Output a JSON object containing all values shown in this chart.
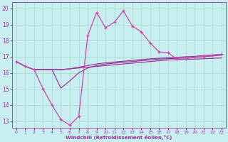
{
  "xlabel": "Windchill (Refroidissement éolien,°C)",
  "background_color": "#c8eef0",
  "grid_color": "#a0d8c8",
  "line_color1": "#cc44aa",
  "line_color2": "#993399",
  "x_ticks": [
    0,
    1,
    2,
    3,
    4,
    5,
    6,
    7,
    8,
    9,
    10,
    11,
    12,
    13,
    14,
    15,
    16,
    17,
    18,
    19,
    20,
    21,
    22,
    23
  ],
  "y_ticks": [
    13,
    14,
    15,
    16,
    17,
    18,
    19,
    20
  ],
  "ylim": [
    12.6,
    20.4
  ],
  "xlim": [
    -0.5,
    23.5
  ],
  "line_zigzag_x": [
    0,
    1,
    2,
    3,
    4,
    5,
    6,
    7,
    8,
    9,
    10,
    11,
    12,
    13,
    14,
    15,
    16,
    17,
    18,
    19,
    20,
    21,
    22,
    23
  ],
  "line_zigzag_y": [
    16.7,
    16.4,
    16.2,
    15.0,
    14.0,
    13.1,
    12.75,
    13.3,
    18.3,
    19.75,
    18.8,
    19.15,
    19.85,
    18.9,
    18.55,
    17.85,
    17.3,
    17.25,
    16.85,
    16.85,
    17.0,
    17.0,
    17.1,
    17.15
  ],
  "line_flat1_x": [
    0,
    1,
    2,
    3,
    4,
    5,
    6,
    7,
    8,
    9,
    10,
    11,
    12,
    13,
    14,
    15,
    16,
    17,
    18,
    19,
    20,
    21,
    22,
    23
  ],
  "line_flat1_y": [
    16.7,
    16.4,
    16.2,
    16.2,
    16.2,
    16.2,
    16.25,
    16.3,
    16.35,
    16.4,
    16.45,
    16.5,
    16.55,
    16.6,
    16.65,
    16.7,
    16.75,
    16.8,
    16.82,
    16.84,
    16.85,
    16.87,
    16.9,
    16.92
  ],
  "line_flat2_x": [
    0,
    1,
    2,
    3,
    4,
    5,
    6,
    7,
    8,
    9,
    10,
    11,
    12,
    13,
    14,
    15,
    16,
    17,
    18,
    19,
    20,
    21,
    22,
    23
  ],
  "line_flat2_y": [
    16.7,
    16.4,
    16.2,
    16.2,
    16.2,
    15.05,
    15.5,
    16.0,
    16.3,
    16.45,
    16.55,
    16.6,
    16.65,
    16.7,
    16.75,
    16.8,
    16.85,
    16.88,
    16.9,
    16.92,
    16.95,
    17.0,
    17.05,
    17.1
  ],
  "line_flat3_x": [
    0,
    1,
    2,
    3,
    4,
    5,
    6,
    7,
    8,
    9,
    10,
    11,
    12,
    13,
    14,
    15,
    16,
    17,
    18,
    19,
    20,
    21,
    22,
    23
  ],
  "line_flat3_y": [
    16.7,
    16.4,
    16.2,
    16.2,
    16.2,
    16.2,
    16.25,
    16.35,
    16.45,
    16.55,
    16.62,
    16.67,
    16.72,
    16.77,
    16.82,
    16.87,
    16.9,
    16.93,
    16.96,
    17.0,
    17.02,
    17.08,
    17.1,
    17.15
  ]
}
